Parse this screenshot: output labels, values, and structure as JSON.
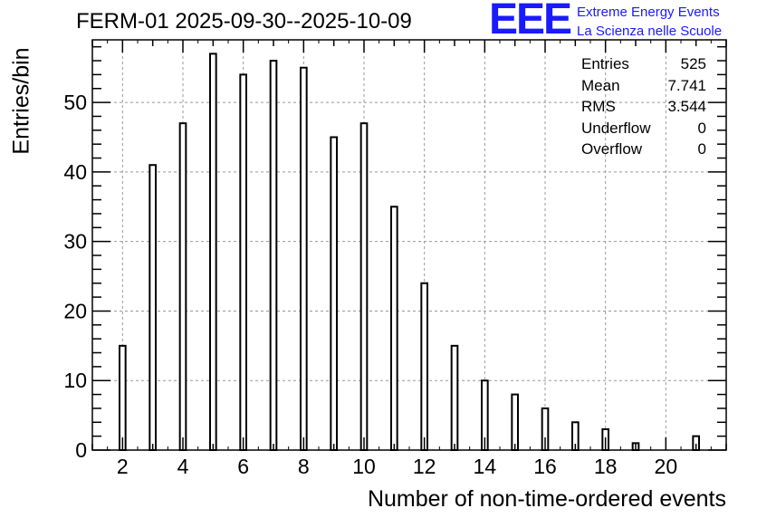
{
  "chart_data": {
    "type": "bar",
    "title": "FERM-01 2025-09-30--2025-10-09",
    "xlabel": "Number of non-time-ordered events",
    "ylabel": "Entries/bin",
    "xlim": [
      1,
      22
    ],
    "ylim": [
      0,
      59
    ],
    "x_ticks": [
      2,
      4,
      6,
      8,
      10,
      12,
      14,
      16,
      18,
      20
    ],
    "y_ticks": [
      0,
      10,
      20,
      30,
      40,
      50
    ],
    "grid": true,
    "x": [
      2,
      3,
      4,
      5,
      6,
      7,
      8,
      9,
      10,
      11,
      12,
      13,
      14,
      15,
      16,
      17,
      18,
      19,
      20,
      21
    ],
    "values": [
      15,
      41,
      47,
      57,
      54,
      56,
      55,
      45,
      47,
      35,
      24,
      15,
      10,
      8,
      6,
      4,
      3,
      1,
      0,
      2
    ],
    "stats_box": {
      "rows": [
        {
          "label": "Entries",
          "value": "525"
        },
        {
          "label": "Mean",
          "value": "7.741"
        },
        {
          "label": "RMS",
          "value": "3.544"
        },
        {
          "label": "Underflow",
          "value": "0"
        },
        {
          "label": "Overflow",
          "value": "0"
        }
      ]
    }
  },
  "logo": {
    "mark": "EEE",
    "line1": "Extreme Energy Events",
    "line2": "La Scienza nelle Scuole",
    "color": "#1a1aff"
  }
}
